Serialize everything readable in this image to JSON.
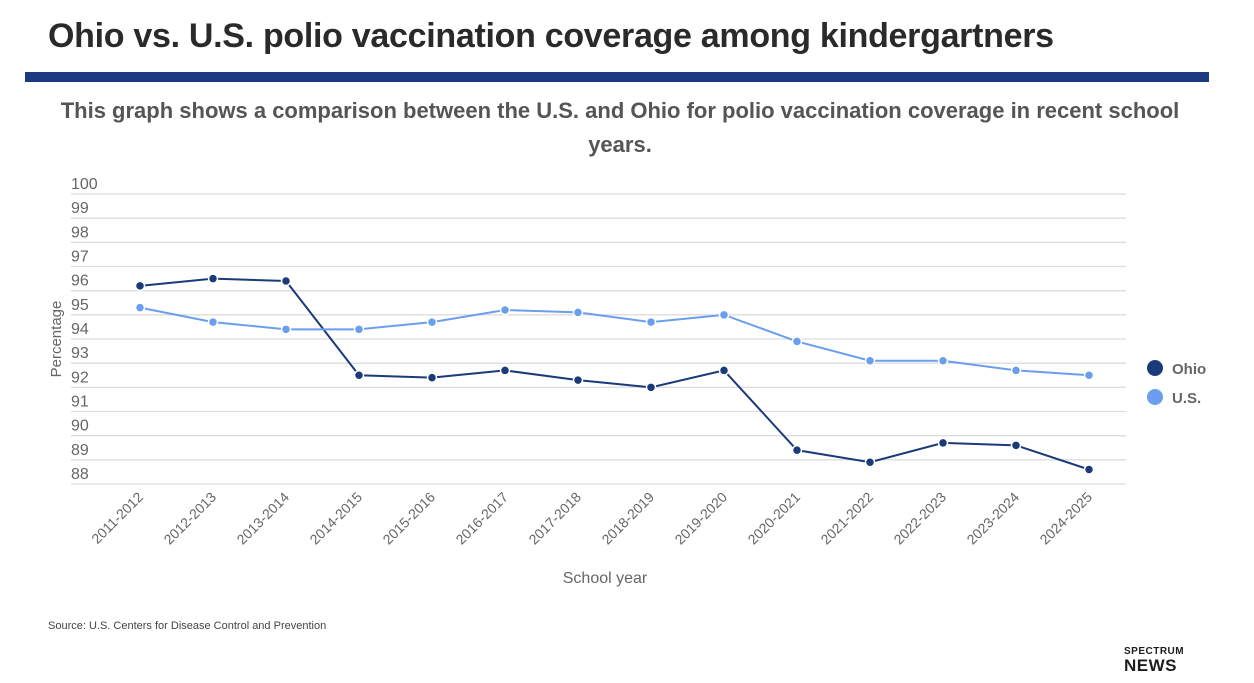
{
  "title": "Ohio vs. U.S. polio vaccination coverage among kindergartners",
  "subtitle": "This graph shows a comparison between the U.S. and Ohio for polio vaccination coverage in recent school years.",
  "source": "Source: U.S. Centers for Disease Control and Prevention",
  "logo": {
    "line1": "SPECTRUM",
    "line2": "NEWS"
  },
  "colors": {
    "ohio": "#1b3a7a",
    "us": "#6b9eef",
    "title_bar": "#1b3a80"
  },
  "chart_data": {
    "type": "line",
    "xlabel": "School year",
    "ylabel": "Percentage",
    "ylim": [
      88,
      100
    ],
    "yticks": [
      100,
      99,
      98,
      97,
      96,
      95,
      94,
      93,
      92,
      91,
      90,
      89,
      88
    ],
    "grid": true,
    "legend_position": "right",
    "categories": [
      "2011-2012",
      "2012-2013",
      "2013-2014",
      "2014-2015",
      "2015-2016",
      "2016-2017",
      "2017-2018",
      "2018-2019",
      "2019-2020",
      "2020-2021",
      "2021-2022",
      "2022-2023",
      "2023-2024",
      "2024-2025"
    ],
    "series": [
      {
        "name": "Ohio",
        "color": "#1b3a7a",
        "values": [
          96.2,
          96.5,
          96.4,
          92.5,
          92.4,
          92.7,
          92.3,
          92.0,
          92.7,
          89.4,
          88.9,
          89.7,
          89.6,
          88.6
        ]
      },
      {
        "name": "U.S.",
        "color": "#6b9eef",
        "values": [
          95.3,
          94.7,
          94.4,
          94.4,
          94.7,
          95.2,
          95.1,
          94.7,
          95.0,
          93.9,
          93.1,
          93.1,
          92.7,
          92.5
        ]
      }
    ]
  }
}
